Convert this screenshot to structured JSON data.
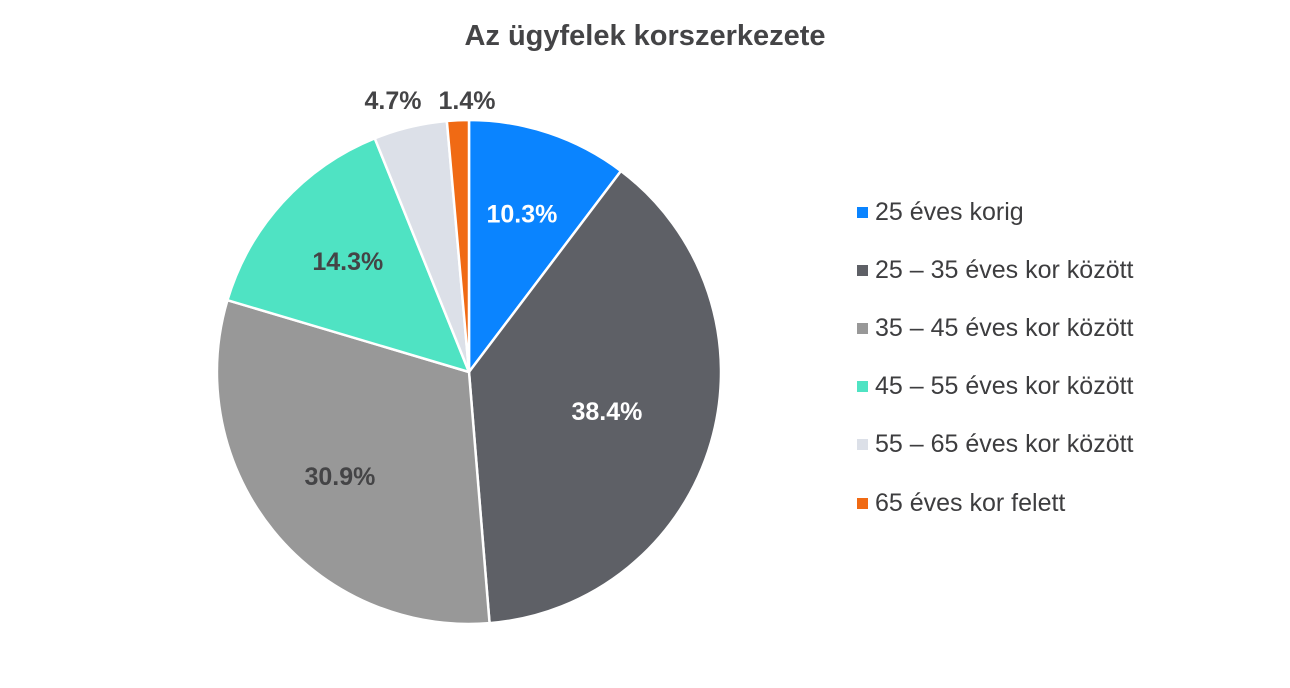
{
  "chart_data": {
    "type": "pie",
    "title": "Az ügyfelek korszerkezete",
    "legend_position": "right",
    "slices": [
      {
        "label": "25 éves korig",
        "value": 10.3,
        "value_label": "10.3%",
        "color": "#0A84FF",
        "label_color": "#ffffff"
      },
      {
        "label": "25 – 35 éves kor között",
        "value": 38.4,
        "value_label": "38.4%",
        "color": "#5E6066",
        "label_color": "#ffffff"
      },
      {
        "label": "35 – 45 éves kor között",
        "value": 30.9,
        "value_label": "30.9%",
        "color": "#989898",
        "label_color": "#444446"
      },
      {
        "label": "45 – 55 éves kor között",
        "value": 14.3,
        "value_label": "14.3%",
        "color": "#4FE3C3",
        "label_color": "#444446"
      },
      {
        "label": "55 – 65 éves kor között",
        "value": 4.7,
        "value_label": "4.7%",
        "color": "#DCE0E8",
        "label_color": "#444446"
      },
      {
        "label": "65 éves kor felett",
        "value": 1.4,
        "value_label": "1.4%",
        "color": "#F06A14",
        "label_color": "#444446"
      }
    ]
  }
}
